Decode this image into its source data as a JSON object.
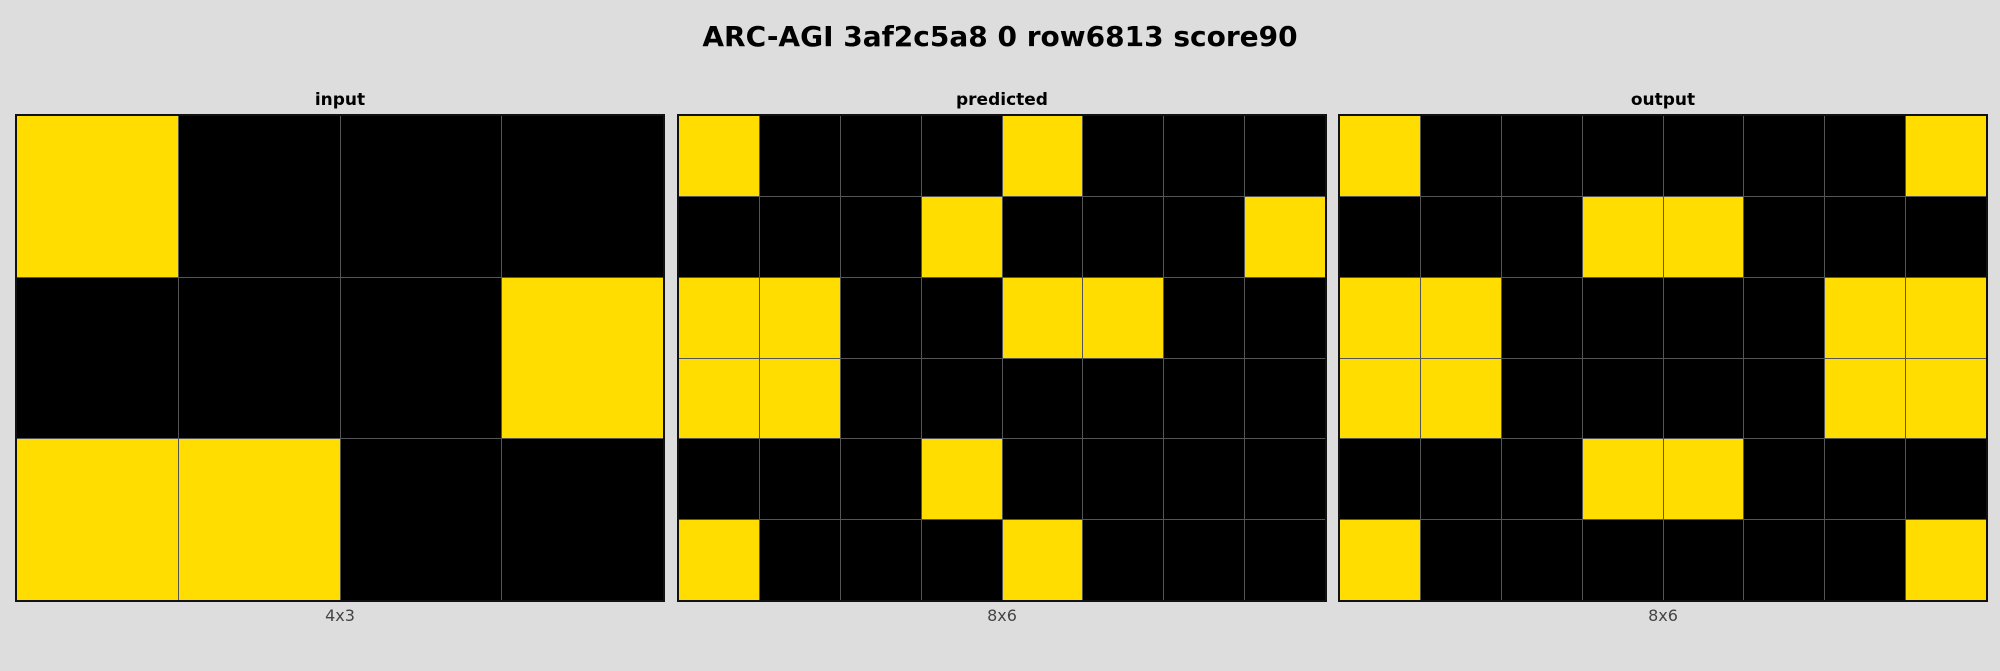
{
  "title": "ARC-AGI 3af2c5a8 0 row6813 score90",
  "colors": {
    "background": "#dddddd",
    "filled": "#ffdd00",
    "empty": "#000000",
    "gridline": "#555555"
  },
  "panels": [
    {
      "label": "input",
      "dims": "4x3",
      "grid": [
        [
          1,
          0,
          0,
          0
        ],
        [
          0,
          0,
          0,
          1
        ],
        [
          1,
          1,
          0,
          0
        ]
      ]
    },
    {
      "label": "predicted",
      "dims": "8x6",
      "grid": [
        [
          1,
          0,
          0,
          0,
          1,
          0,
          0,
          0
        ],
        [
          0,
          0,
          0,
          1,
          0,
          0,
          0,
          1
        ],
        [
          1,
          1,
          0,
          0,
          1,
          1,
          0,
          0
        ],
        [
          1,
          1,
          0,
          0,
          0,
          0,
          0,
          0
        ],
        [
          0,
          0,
          0,
          1,
          0,
          0,
          0,
          0
        ],
        [
          1,
          0,
          0,
          0,
          1,
          0,
          0,
          0
        ]
      ]
    },
    {
      "label": "output",
      "dims": "8x6",
      "grid": [
        [
          1,
          0,
          0,
          0,
          0,
          0,
          0,
          1
        ],
        [
          0,
          0,
          0,
          1,
          1,
          0,
          0,
          0
        ],
        [
          1,
          1,
          0,
          0,
          0,
          0,
          1,
          1
        ],
        [
          1,
          1,
          0,
          0,
          0,
          0,
          1,
          1
        ],
        [
          0,
          0,
          0,
          1,
          1,
          0,
          0,
          0
        ],
        [
          1,
          0,
          0,
          0,
          0,
          0,
          0,
          1
        ]
      ]
    }
  ]
}
